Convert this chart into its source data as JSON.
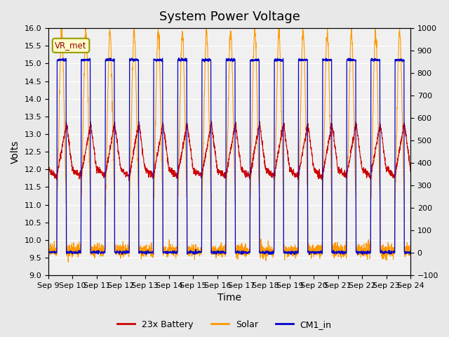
{
  "title": "System Power Voltage",
  "xlabel": "Time",
  "ylabel_left": "Volts",
  "ylim_left": [
    9.0,
    16.0
  ],
  "ylim_right": [
    -100,
    1000
  ],
  "yticks_left": [
    9.0,
    9.5,
    10.0,
    10.5,
    11.0,
    11.5,
    12.0,
    12.5,
    13.0,
    13.5,
    14.0,
    14.5,
    15.0,
    15.5,
    16.0
  ],
  "yticks_right": [
    -100,
    0,
    100,
    200,
    300,
    400,
    500,
    600,
    700,
    800,
    900,
    1000
  ],
  "xtick_labels": [
    "Sep 9",
    "Sep 10",
    "Sep 11",
    "Sep 12",
    "Sep 13",
    "Sep 14",
    "Sep 15",
    "Sep 16",
    "Sep 17",
    "Sep 18",
    "Sep 19",
    "Sep 20",
    "Sep 21",
    "Sep 22",
    "Sep 23",
    "Sep 24"
  ],
  "legend_entries": [
    "23x Battery",
    "Solar",
    "CM1_in"
  ],
  "legend_colors": [
    "#cc0000",
    "#ff9900",
    "#0000cc"
  ],
  "vr_met_label": "VR_met",
  "background_color": "#e8e8e8",
  "plot_bg_color": "#f0f0f0",
  "title_fontsize": 13,
  "axis_fontsize": 10,
  "tick_fontsize": 8,
  "n_days": 15,
  "samples_per_day": 144
}
